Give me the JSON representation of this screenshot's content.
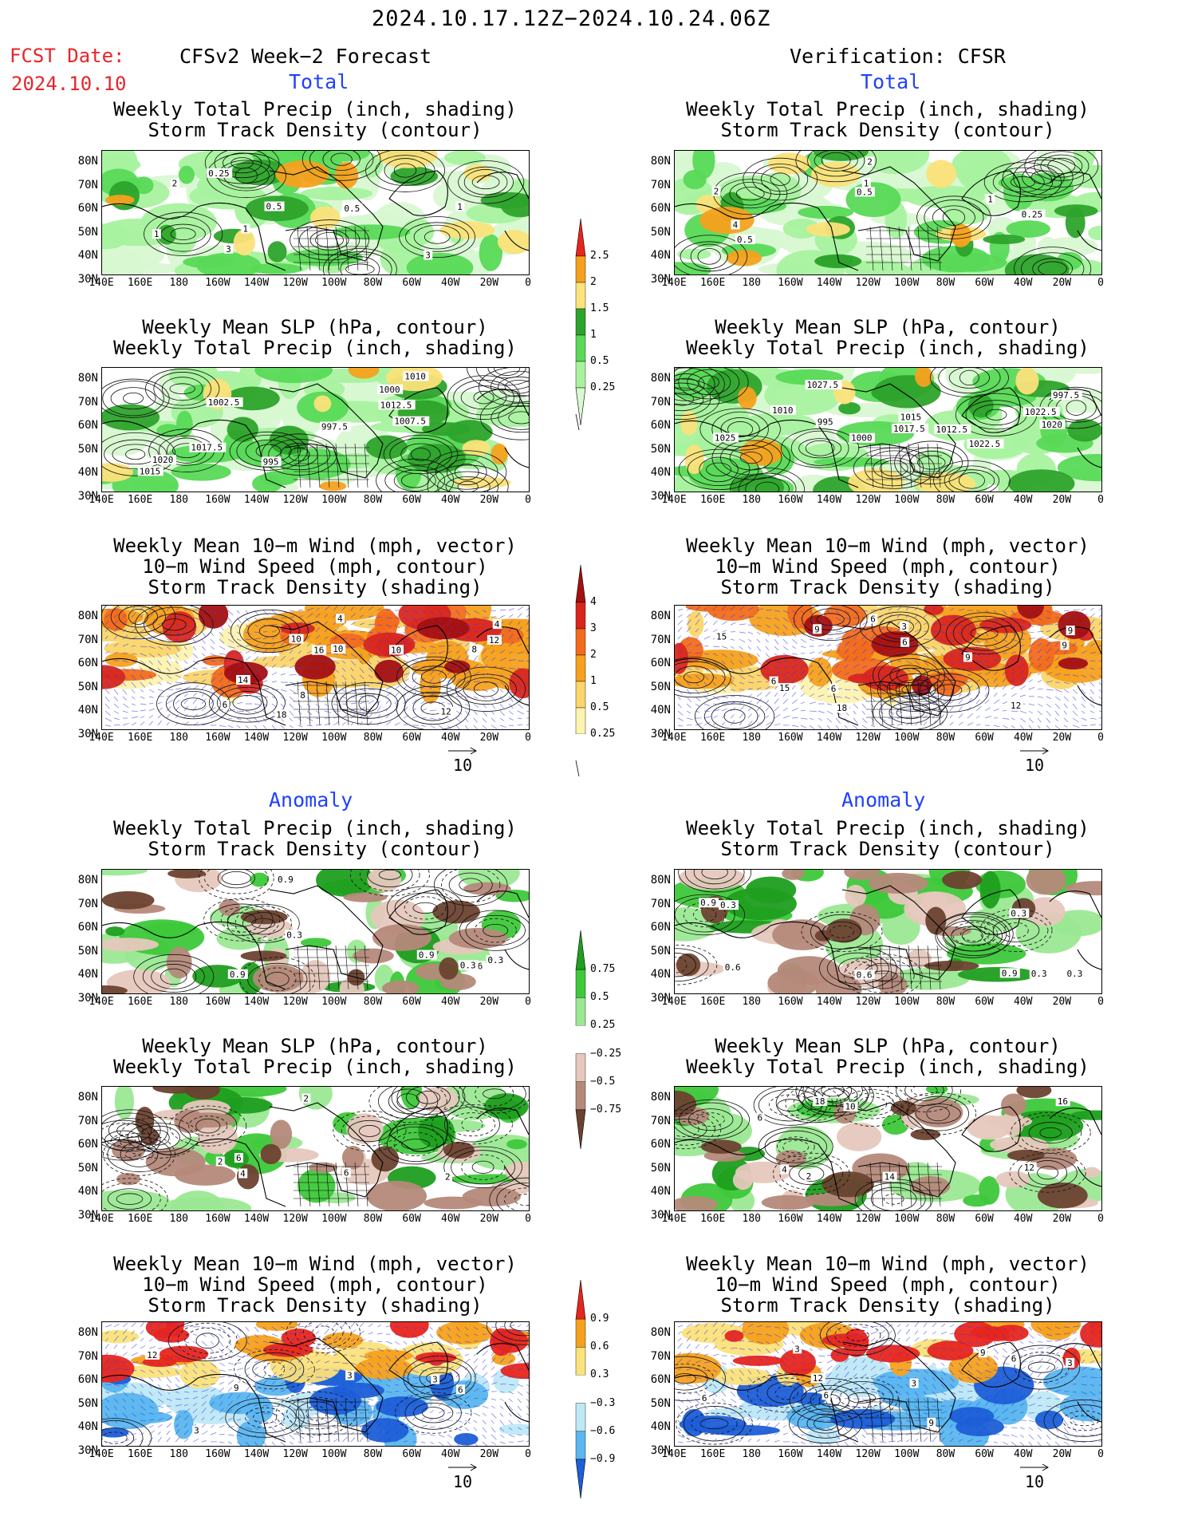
{
  "header": {
    "period": "2024.10.17.12Z−2024.10.24.06Z",
    "fcst_label": "FCST Date:",
    "fcst_date": "2024.10.10",
    "left_title": "CFSv2 Week−2 Forecast",
    "right_title": "Verification: CFSR"
  },
  "sections": {
    "total": "Total",
    "anomaly": "Anomaly"
  },
  "panel_titles": {
    "precip": [
      "Weekly Total Precip (inch, shading)",
      "Storm Track Density (contour)"
    ],
    "slp": [
      "Weekly Mean SLP (hPa, contour)",
      "Weekly Total Precip (inch, shading)"
    ],
    "wind": [
      "Weekly Mean 10−m Wind (mph, vector)",
      "10−m Wind Speed (mph, contour)",
      "Storm Track Density (shading)"
    ]
  },
  "axes": {
    "lat_labels": [
      "80N",
      "70N",
      "60N",
      "50N",
      "40N",
      "30N"
    ],
    "lon_labels": [
      "140E",
      "160E",
      "180",
      "160W",
      "140W",
      "120W",
      "100W",
      "80W",
      "60W",
      "40W",
      "20W",
      "0"
    ]
  },
  "vector_reference": "10",
  "colorbars": {
    "precip_total": {
      "labels": [
        "2.5",
        "2",
        "1.5",
        "1",
        "0.5",
        "0.25"
      ],
      "colors": [
        "#e8251c",
        "#f5a11d",
        "#fbe27a",
        "#2da32b",
        "#59d957",
        "#a8f29f",
        "#d8f8d2"
      ]
    },
    "storm_total": {
      "labels": [
        "4",
        "3",
        "2",
        "1",
        "0.5",
        "0.25"
      ],
      "colors": [
        "#a50f0f",
        "#d9261d",
        "#f26b1c",
        "#f5a11d",
        "#fbd56a",
        "#fdf3b0",
        "#ffffff"
      ]
    },
    "precip_anom": {
      "labels": [
        "0.75",
        "0.5",
        "0.25",
        "−0.25",
        "−0.5",
        "−0.75"
      ],
      "colors": [
        "#1f9e1f",
        "#3ec83a",
        "#9be893",
        "#ffffff",
        "#e6c8bd",
        "#b5897a",
        "#6b4230"
      ]
    },
    "storm_anom": {
      "labels": [
        "0.9",
        "0.6",
        "0.3",
        "−0.3",
        "−0.6",
        "−0.9"
      ],
      "colors": [
        "#e8251c",
        "#f5a11d",
        "#fbe27a",
        "#ffffff",
        "#bfe8f5",
        "#5ab6ee",
        "#1c5fd6"
      ]
    }
  },
  "contour_labels": {
    "L1": [
      "0.25",
      "1",
      "0.5",
      "3",
      "1",
      "2",
      "0.5",
      "3",
      "1"
    ],
    "R1": [
      "0.5",
      "0.25",
      "0.5",
      "1",
      "4",
      "2",
      "2",
      "1"
    ],
    "L2": [
      "1010",
      "1002.5",
      "1012.5",
      "1000",
      "997.5",
      "1007.5",
      "1015",
      "995",
      "1020",
      "1017.5"
    ],
    "R2": [
      "997.5",
      "1010",
      "1000",
      "995",
      "1015",
      "1012.5",
      "1020",
      "1022.5",
      "1027.5",
      "1025",
      "1017.5",
      "1022.5"
    ],
    "L3": [
      "6",
      "4",
      "4",
      "10",
      "12",
      "14",
      "16",
      "8",
      "12",
      "10",
      "18",
      "8",
      "10"
    ],
    "R3": [
      "6",
      "3",
      "9",
      "6",
      "9",
      "15",
      "18",
      "9",
      "15",
      "9",
      "12",
      "6",
      "6"
    ],
    "L4": [
      "0.9",
      "0.6",
      "0.9",
      "0.3",
      "0.9",
      "0.3",
      "0.3"
    ],
    "R4": [
      "0.3",
      "0.3",
      "0.9",
      "0.6",
      "0.6",
      "0.9",
      "0.3",
      "0.3"
    ],
    "L5": [
      "6",
      "2",
      "6",
      "4",
      "2",
      "2"
    ],
    "R5": [
      "14",
      "4",
      "18",
      "16",
      "12",
      "10",
      "2",
      "6"
    ],
    "L6": [
      "3",
      "3",
      "6",
      "3",
      "9",
      "12"
    ],
    "R6": [
      "6",
      "3",
      "9",
      "6",
      "12",
      "3",
      "9",
      "3",
      "6"
    ]
  }
}
